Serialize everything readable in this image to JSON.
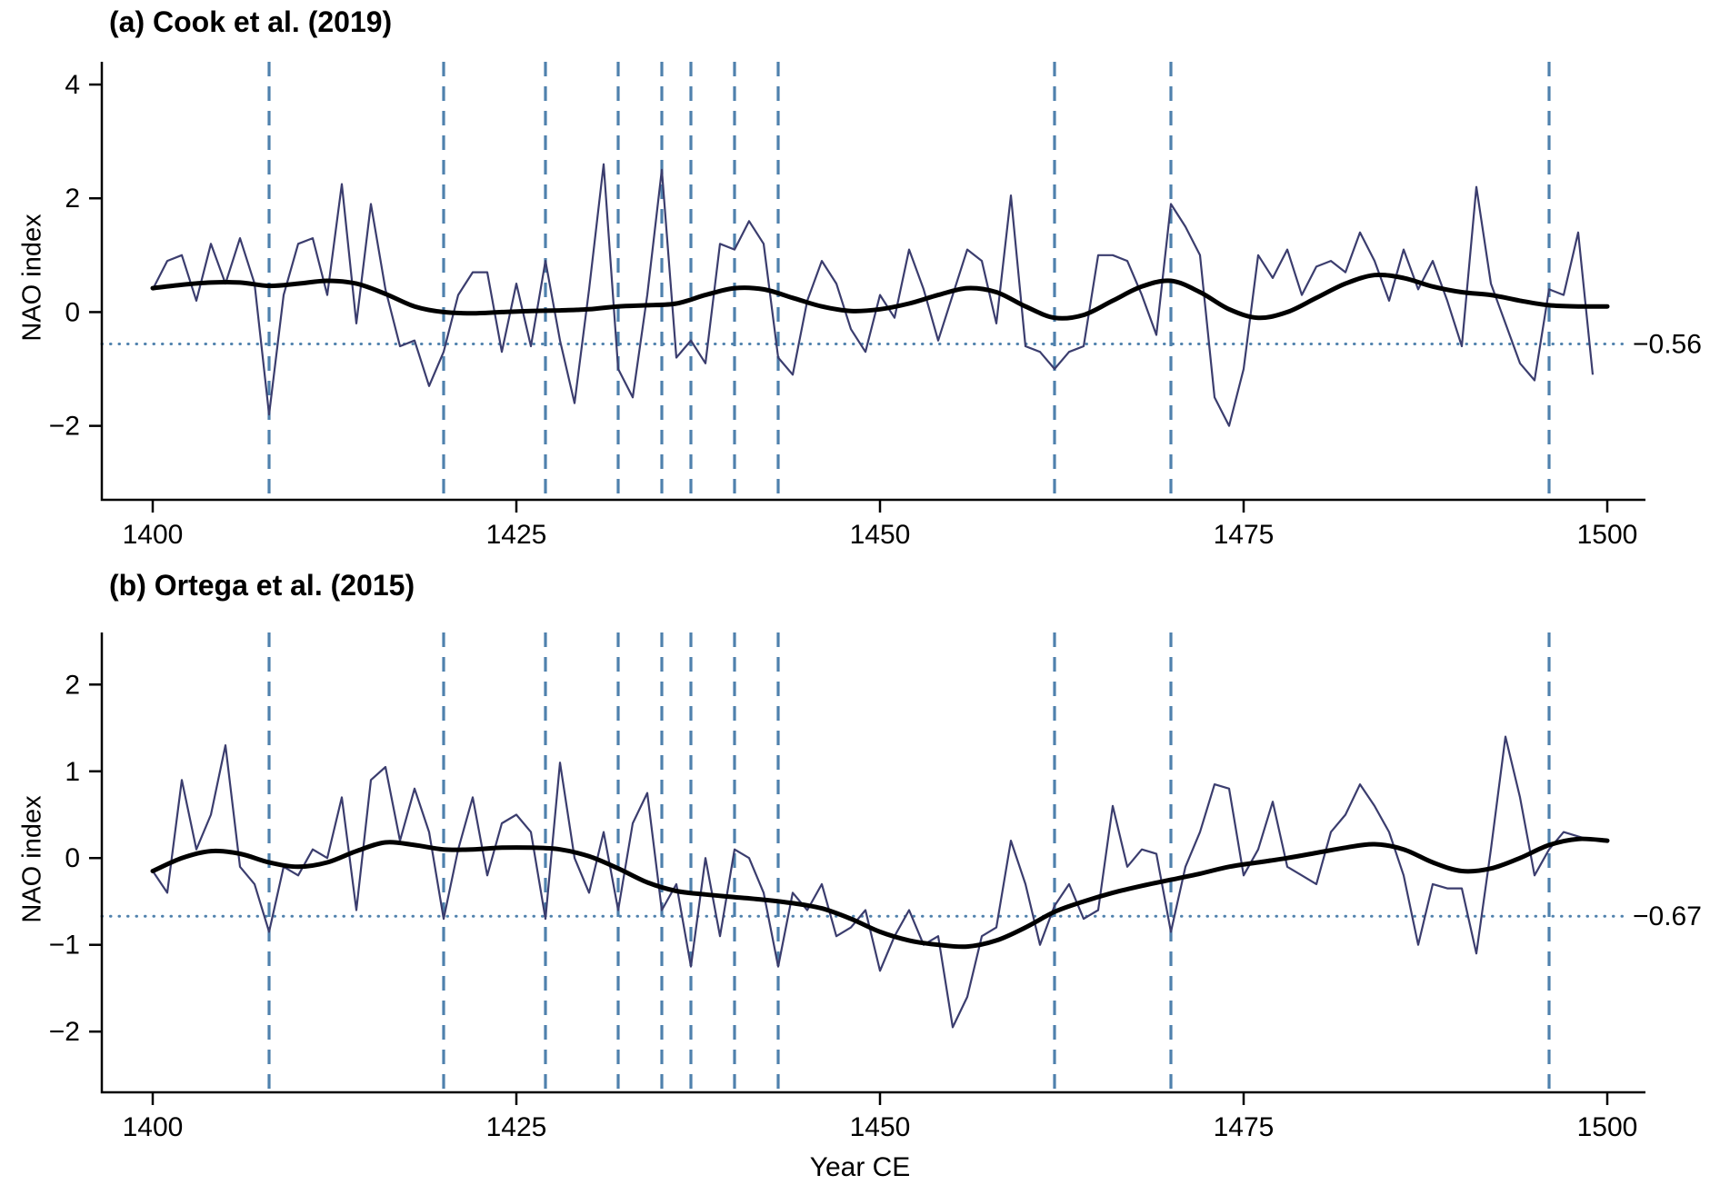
{
  "chart_data": [
    {
      "type": "line",
      "panel": "a",
      "title": "(a) Cook et al. (2019)",
      "xlabel": "Year CE",
      "ylabel": "NAO index",
      "xlim": [
        1397,
        1503
      ],
      "ylim": [
        -3.3,
        4.4
      ],
      "xticks": [
        1400,
        1425,
        1450,
        1475,
        1500
      ],
      "yticks": [
        4,
        2,
        0,
        -2
      ],
      "grid": false,
      "legend": "none",
      "threshold": {
        "value": -0.56,
        "label": "−0.56"
      },
      "event_years": [
        1408,
        1420,
        1427,
        1432,
        1435,
        1437,
        1440,
        1443,
        1462,
        1470,
        1496
      ],
      "style": {
        "annual_color": "#3b3d6e",
        "smooth_color": "#000000",
        "event_color": "#4f81ad",
        "threshold_color": "#4f81ad",
        "threshold_label_color": "#2c3e6b",
        "axis_color": "#000000"
      },
      "series": [
        {
          "name": "annual NAO index",
          "x_start": 1400,
          "x_step": 1,
          "values": [
            0.4,
            0.9,
            1.0,
            0.2,
            1.2,
            0.5,
            1.3,
            0.5,
            -1.8,
            0.3,
            1.2,
            1.3,
            0.3,
            2.25,
            -0.2,
            1.9,
            0.4,
            -0.6,
            -0.5,
            -1.3,
            -0.7,
            0.3,
            0.7,
            0.7,
            -0.7,
            0.5,
            -0.6,
            0.9,
            -0.5,
            -1.6,
            0.4,
            2.6,
            -1.0,
            -1.5,
            0.3,
            2.5,
            -0.8,
            -0.5,
            -0.9,
            1.2,
            1.1,
            1.6,
            1.2,
            -0.8,
            -1.1,
            0.2,
            0.9,
            0.5,
            -0.3,
            -0.7,
            0.3,
            -0.1,
            1.1,
            0.4,
            -0.5,
            0.3,
            1.1,
            0.9,
            -0.2,
            2.05,
            -0.6,
            -0.7,
            -1.0,
            -0.7,
            -0.6,
            1.0,
            1.0,
            0.9,
            0.3,
            -0.4,
            1.9,
            1.5,
            1.0,
            -1.5,
            -2.0,
            -1.0,
            1.0,
            0.6,
            1.1,
            0.3,
            0.8,
            0.9,
            0.7,
            1.4,
            0.9,
            0.2,
            1.1,
            0.4,
            0.9,
            0.2,
            -0.6,
            2.2,
            0.5,
            -0.2,
            -0.9,
            -1.2,
            0.4,
            0.3,
            1.4,
            -1.1
          ]
        },
        {
          "name": "smoothed NAO index",
          "x_start": 1400,
          "x_step": 2,
          "values": [
            0.42,
            0.48,
            0.52,
            0.52,
            0.46,
            0.5,
            0.55,
            0.5,
            0.32,
            0.1,
            0,
            -0.02,
            0,
            0.02,
            0.03,
            0.05,
            0.1,
            0.12,
            0.15,
            0.3,
            0.42,
            0.4,
            0.25,
            0.1,
            0.02,
            0.05,
            0.15,
            0.3,
            0.42,
            0.35,
            0.1,
            -0.1,
            -0.05,
            0.2,
            0.45,
            0.55,
            0.35,
            0.05,
            -0.1,
            0,
            0.25,
            0.5,
            0.65,
            0.6,
            0.45,
            0.35,
            0.3,
            0.2,
            0.12,
            0.1,
            0.1
          ]
        }
      ]
    },
    {
      "type": "line",
      "panel": "b",
      "title": "(b) Ortega et al. (2015)",
      "xlabel": "Year CE",
      "ylabel": "NAO index",
      "xlim": [
        1397,
        1503
      ],
      "ylim": [
        -2.7,
        2.6
      ],
      "xticks": [
        1400,
        1425,
        1450,
        1475,
        1500
      ],
      "yticks": [
        2,
        1,
        0,
        -1,
        -2
      ],
      "grid": false,
      "legend": "none",
      "threshold": {
        "value": -0.67,
        "label": "−0.67"
      },
      "event_years": [
        1408,
        1420,
        1427,
        1432,
        1435,
        1437,
        1440,
        1443,
        1462,
        1470,
        1496
      ],
      "style": {
        "annual_color": "#3b3d6e",
        "smooth_color": "#000000",
        "event_color": "#4f81ad",
        "threshold_color": "#4f81ad",
        "threshold_label_color": "#2c3e6b",
        "axis_color": "#000000"
      },
      "series": [
        {
          "name": "annual NAO index",
          "x_start": 1400,
          "x_step": 1,
          "values": [
            -0.15,
            -0.4,
            0.9,
            0.1,
            0.5,
            1.3,
            -0.1,
            -0.3,
            -0.85,
            -0.1,
            -0.2,
            0.1,
            0.0,
            0.7,
            -0.6,
            0.9,
            1.05,
            0.2,
            0.8,
            0.3,
            -0.7,
            0.1,
            0.7,
            -0.2,
            0.4,
            0.5,
            0.3,
            -0.7,
            1.1,
            0.0,
            -0.4,
            0.3,
            -0.6,
            0.4,
            0.75,
            -0.6,
            -0.3,
            -1.25,
            0.0,
            -0.9,
            0.1,
            0.0,
            -0.4,
            -1.25,
            -0.4,
            -0.6,
            -0.3,
            -0.9,
            -0.8,
            -0.6,
            -1.3,
            -0.9,
            -0.6,
            -1.0,
            -0.9,
            -1.95,
            -1.6,
            -0.9,
            -0.8,
            0.2,
            -0.3,
            -1.0,
            -0.55,
            -0.3,
            -0.7,
            -0.6,
            0.6,
            -0.1,
            0.1,
            0.05,
            -0.85,
            -0.1,
            0.3,
            0.85,
            0.8,
            -0.2,
            0.1,
            0.65,
            -0.1,
            -0.2,
            -0.3,
            0.3,
            0.5,
            0.85,
            0.6,
            0.3,
            -0.2,
            -1.0,
            -0.3,
            -0.35,
            -0.35,
            -1.1,
            0.1,
            1.4,
            0.7,
            -0.2,
            0.1,
            0.3,
            0.25,
            0.2
          ]
        },
        {
          "name": "smoothed NAO index",
          "x_start": 1400,
          "x_step": 2,
          "values": [
            -0.15,
            0,
            0.08,
            0.05,
            -0.05,
            -0.1,
            -0.05,
            0.08,
            0.18,
            0.15,
            0.1,
            0.1,
            0.12,
            0.12,
            0.1,
            0.02,
            -0.12,
            -0.28,
            -0.38,
            -0.42,
            -0.45,
            -0.48,
            -0.52,
            -0.58,
            -0.7,
            -0.85,
            -0.95,
            -1,
            -1.02,
            -0.95,
            -0.8,
            -0.62,
            -0.5,
            -0.4,
            -0.32,
            -0.25,
            -0.18,
            -0.1,
            -0.05,
            0,
            0.06,
            0.12,
            0.16,
            0.1,
            -0.05,
            -0.15,
            -0.12,
            0,
            0.15,
            0.22,
            0.2
          ]
        }
      ]
    }
  ]
}
